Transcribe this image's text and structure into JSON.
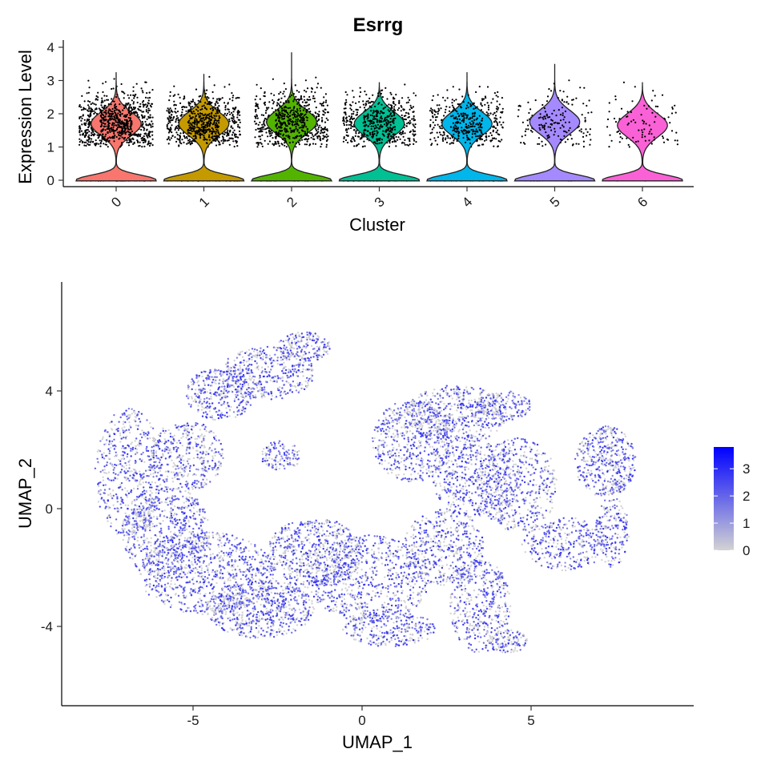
{
  "chart_data": [
    {
      "type": "violin",
      "title": "Esrrg",
      "xlabel": "Cluster",
      "ylabel": "Expression Level",
      "ylim": [
        -0.15,
        4.1
      ],
      "yticks": [
        0,
        1,
        2,
        3,
        4
      ],
      "categories": [
        "0",
        "1",
        "2",
        "3",
        "4",
        "5",
        "6"
      ],
      "colors": [
        "#F8766D",
        "#C49A00",
        "#53B400",
        "#00C094",
        "#00B6EB",
        "#A58AFF",
        "#FB61D7"
      ],
      "max_values": [
        3.25,
        3.2,
        3.85,
        2.95,
        3.25,
        3.5,
        2.95
      ],
      "upper_mode": [
        1.7,
        1.7,
        1.75,
        1.7,
        1.7,
        1.75,
        1.65
      ]
    },
    {
      "type": "scatter",
      "title": "",
      "xlabel": "UMAP_1",
      "ylabel": "UMAP_2",
      "xlim": [
        -8.9,
        9.9
      ],
      "ylim": [
        -6.7,
        7.6
      ],
      "xticks": [
        -5,
        0,
        5
      ],
      "yticks": [
        -4,
        0,
        4
      ],
      "color_scale": {
        "low": "#d3d3d3",
        "high": "#0000ff",
        "min": 0,
        "max": 3.8
      },
      "legend": {
        "position": "right",
        "ticks": [
          "3",
          "2",
          "1",
          "0"
        ]
      },
      "regions": [
        {
          "cx": -6.9,
          "cy": 1.2,
          "rx": 1.0,
          "ry": 2.2,
          "n": 280
        },
        {
          "cx": -5.8,
          "cy": -0.8,
          "rx": 1.3,
          "ry": 1.6,
          "n": 300
        },
        {
          "cx": -5.2,
          "cy": 1.8,
          "rx": 1.1,
          "ry": 1.2,
          "n": 200
        },
        {
          "cx": -4.2,
          "cy": 3.9,
          "rx": 1.0,
          "ry": 0.9,
          "n": 160
        },
        {
          "cx": -2.8,
          "cy": 4.6,
          "rx": 1.4,
          "ry": 0.9,
          "n": 220
        },
        {
          "cx": -1.7,
          "cy": 5.5,
          "rx": 0.8,
          "ry": 0.5,
          "n": 90
        },
        {
          "cx": -2.4,
          "cy": 1.8,
          "rx": 0.6,
          "ry": 0.5,
          "n": 60
        },
        {
          "cx": -4.6,
          "cy": -2.2,
          "rx": 2.0,
          "ry": 1.4,
          "n": 420
        },
        {
          "cx": -3.0,
          "cy": -3.4,
          "rx": 1.6,
          "ry": 1.0,
          "n": 320
        },
        {
          "cx": -1.4,
          "cy": -1.5,
          "rx": 1.4,
          "ry": 1.2,
          "n": 300
        },
        {
          "cx": 0.2,
          "cy": -2.4,
          "rx": 1.8,
          "ry": 1.5,
          "n": 360
        },
        {
          "cx": 0.8,
          "cy": -4.1,
          "rx": 1.4,
          "ry": 0.6,
          "n": 140
        },
        {
          "cx": 2.4,
          "cy": -1.3,
          "rx": 1.2,
          "ry": 1.3,
          "n": 230
        },
        {
          "cx": 1.5,
          "cy": 2.3,
          "rx": 1.2,
          "ry": 1.4,
          "n": 260
        },
        {
          "cx": 2.8,
          "cy": 3.2,
          "rx": 1.5,
          "ry": 1.0,
          "n": 260
        },
        {
          "cx": 3.4,
          "cy": 1.0,
          "rx": 1.3,
          "ry": 1.3,
          "n": 260
        },
        {
          "cx": 4.2,
          "cy": 3.5,
          "rx": 0.8,
          "ry": 0.5,
          "n": 90
        },
        {
          "cx": 4.6,
          "cy": 0.8,
          "rx": 1.2,
          "ry": 1.6,
          "n": 230
        },
        {
          "cx": 6.0,
          "cy": -1.2,
          "rx": 1.3,
          "ry": 0.9,
          "n": 170
        },
        {
          "cx": 7.2,
          "cy": 1.6,
          "rx": 0.9,
          "ry": 1.2,
          "n": 220
        },
        {
          "cx": 7.4,
          "cy": -0.8,
          "rx": 0.5,
          "ry": 1.2,
          "n": 90
        },
        {
          "cx": 3.5,
          "cy": -3.3,
          "rx": 0.9,
          "ry": 1.6,
          "n": 200
        },
        {
          "cx": 4.3,
          "cy": -4.5,
          "rx": 0.6,
          "ry": 0.4,
          "n": 60
        }
      ]
    }
  ]
}
